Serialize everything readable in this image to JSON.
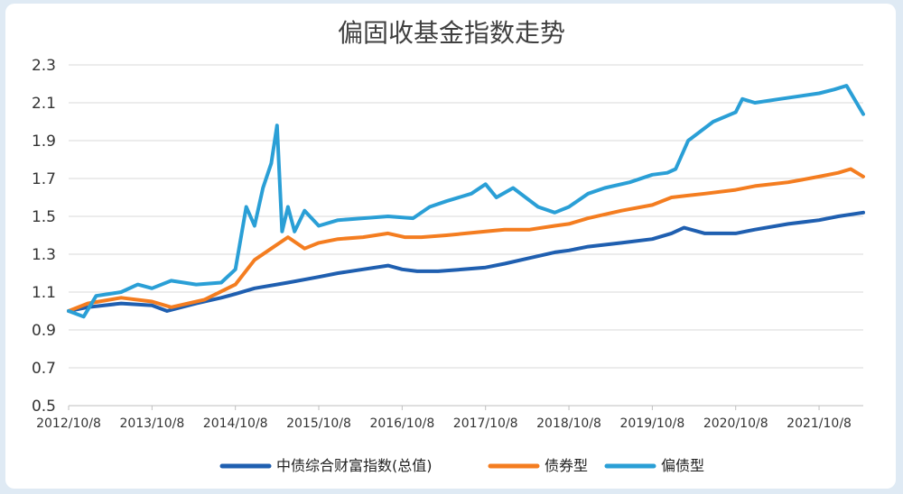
{
  "chart_data": {
    "type": "line",
    "title": "偏固收基金指数走势",
    "xlabel": "",
    "ylabel": "",
    "ylim": [
      0.5,
      2.3
    ],
    "yticks": [
      "0.5",
      "0.7",
      "0.9",
      "1.1",
      "1.3",
      "1.5",
      "1.7",
      "1.9",
      "2.1",
      "2.3"
    ],
    "xticks": [
      "2012/10/8",
      "2013/10/8",
      "2014/10/8",
      "2015/10/8",
      "2016/10/8",
      "2017/10/8",
      "2018/10/8",
      "2019/10/8",
      "2020/10/8",
      "2021/10/8"
    ],
    "x_range": [
      2012.77,
      2022.3
    ],
    "grid": "horizontal",
    "legend_position": "bottom",
    "colors": {
      "index": "#1f5fb0",
      "bond": "#f47d20",
      "partial": "#2a9fd6"
    },
    "series": [
      {
        "name": "中债综合财富指数(总值)",
        "color": "#1f5fb0",
        "x": [
          2012.77,
          2013.0,
          2013.4,
          2013.77,
          2013.95,
          2014.3,
          2014.6,
          2014.77,
          2015.0,
          2015.4,
          2015.77,
          2016.0,
          2016.3,
          2016.6,
          2016.77,
          2016.95,
          2017.2,
          2017.5,
          2017.77,
          2018.0,
          2018.3,
          2018.6,
          2018.77,
          2019.0,
          2019.4,
          2019.77,
          2020.0,
          2020.15,
          2020.4,
          2020.77,
          2021.0,
          2021.4,
          2021.77,
          2022.0,
          2022.3
        ],
        "y": [
          1.0,
          1.02,
          1.04,
          1.03,
          1.0,
          1.04,
          1.07,
          1.09,
          1.12,
          1.15,
          1.18,
          1.2,
          1.22,
          1.24,
          1.22,
          1.21,
          1.21,
          1.22,
          1.23,
          1.25,
          1.28,
          1.31,
          1.32,
          1.34,
          1.36,
          1.38,
          1.41,
          1.44,
          1.41,
          1.41,
          1.43,
          1.46,
          1.48,
          1.5,
          1.52
        ]
      },
      {
        "name": "债券型",
        "color": "#f47d20",
        "x": [
          2012.77,
          2013.0,
          2013.4,
          2013.77,
          2014.0,
          2014.4,
          2014.77,
          2015.0,
          2015.2,
          2015.4,
          2015.6,
          2015.77,
          2016.0,
          2016.3,
          2016.6,
          2016.8,
          2017.0,
          2017.3,
          2017.77,
          2018.0,
          2018.3,
          2018.6,
          2018.77,
          2019.0,
          2019.4,
          2019.77,
          2020.0,
          2020.4,
          2020.77,
          2021.0,
          2021.4,
          2021.77,
          2022.0,
          2022.15,
          2022.3
        ],
        "y": [
          1.0,
          1.04,
          1.07,
          1.05,
          1.02,
          1.06,
          1.14,
          1.27,
          1.33,
          1.39,
          1.33,
          1.36,
          1.38,
          1.39,
          1.41,
          1.39,
          1.39,
          1.4,
          1.42,
          1.43,
          1.43,
          1.45,
          1.46,
          1.49,
          1.53,
          1.56,
          1.6,
          1.62,
          1.64,
          1.66,
          1.68,
          1.71,
          1.73,
          1.75,
          1.71
        ]
      },
      {
        "name": "偏债型",
        "color": "#2a9fd6",
        "x": [
          2012.77,
          2012.95,
          2013.1,
          2013.4,
          2013.6,
          2013.77,
          2014.0,
          2014.3,
          2014.6,
          2014.77,
          2014.9,
          2015.0,
          2015.1,
          2015.2,
          2015.27,
          2015.33,
          2015.4,
          2015.48,
          2015.6,
          2015.77,
          2016.0,
          2016.3,
          2016.6,
          2016.9,
          2017.1,
          2017.3,
          2017.6,
          2017.77,
          2017.9,
          2018.1,
          2018.4,
          2018.6,
          2018.77,
          2019.0,
          2019.2,
          2019.5,
          2019.77,
          2019.95,
          2020.05,
          2020.2,
          2020.5,
          2020.77,
          2020.85,
          2021.0,
          2021.3,
          2021.77,
          2021.95,
          2022.1,
          2022.3
        ],
        "y": [
          1.0,
          0.97,
          1.08,
          1.1,
          1.14,
          1.12,
          1.16,
          1.14,
          1.15,
          1.22,
          1.55,
          1.45,
          1.65,
          1.78,
          1.98,
          1.42,
          1.55,
          1.42,
          1.53,
          1.45,
          1.48,
          1.49,
          1.5,
          1.49,
          1.55,
          1.58,
          1.62,
          1.67,
          1.6,
          1.65,
          1.55,
          1.52,
          1.55,
          1.62,
          1.65,
          1.68,
          1.72,
          1.73,
          1.75,
          1.9,
          2.0,
          2.05,
          2.12,
          2.1,
          2.12,
          2.15,
          2.17,
          2.19,
          2.04
        ]
      }
    ]
  }
}
